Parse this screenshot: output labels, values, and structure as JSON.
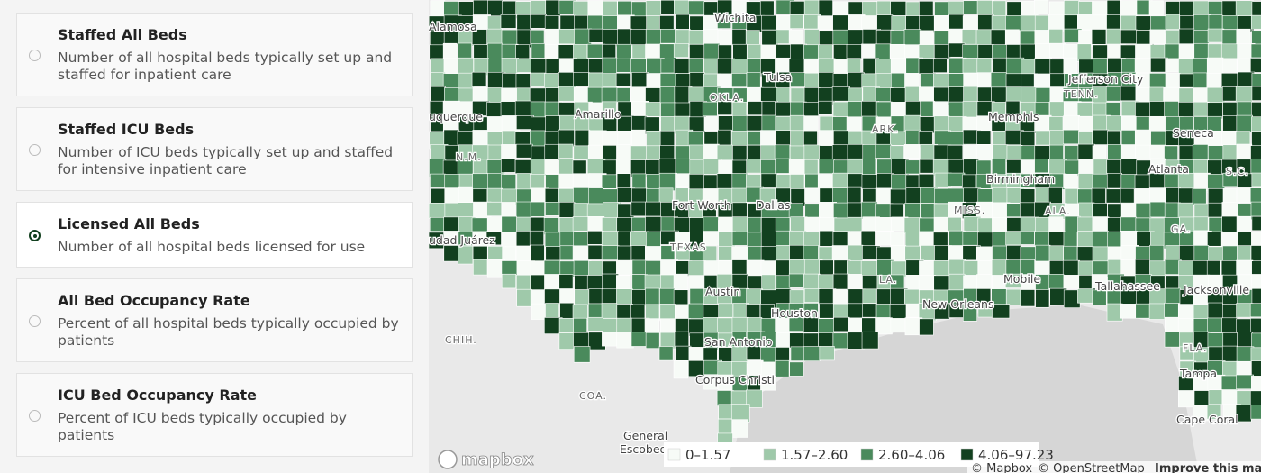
{
  "options": [
    {
      "title": "Staffed All Beds",
      "description": "Number of all hospital beds typically set up and staffed for inpatient care",
      "selected": false
    },
    {
      "title": "Staffed ICU Beds",
      "description": "Number of ICU beds typically set up and staffed for intensive inpatient care",
      "selected": false
    },
    {
      "title": "Licensed All Beds",
      "description": "Number of all hospital beds licensed for use",
      "selected": true
    },
    {
      "title": "All Bed Occupancy Rate",
      "description": "Percent of all hospital beds typically occupied by patients",
      "selected": false
    },
    {
      "title": "ICU Bed Occupancy Rate",
      "description": "Percent of ICU beds typically occupied by patients",
      "selected": false
    }
  ],
  "map": {
    "labels": [
      "Alamosa",
      "Wichita",
      "Tulsa",
      "Jefferson City",
      "OKLA.",
      "TENN.",
      "Amarillo",
      "Memphis",
      "uquerque",
      "N.M.",
      "ARK.",
      "Seneca",
      "Atlanta",
      "S.C.",
      "Birmingham",
      "Fort Worth",
      "Dallas",
      "MISS.",
      "ALA.",
      "udad Juárez",
      "TEXAS",
      "GA.",
      "LA.",
      "Mobile",
      "Tallahassee",
      "Jacksonville",
      "Austin",
      "New Orleans",
      "Houston",
      "CHIH.",
      "San Antonio",
      "FLA.",
      "Tampa",
      "Corpus Christi",
      "COA.",
      "General",
      "Escobed",
      "Cape Coral"
    ],
    "legend": [
      {
        "label": "0–1.57",
        "color": "#f7fbf7"
      },
      {
        "label": "1.57–2.60",
        "color": "#9fc9aa"
      },
      {
        "label": "2.60–4.06",
        "color": "#4a8a5c"
      },
      {
        "label": "4.06–97.23",
        "color": "#12401f"
      }
    ],
    "logo": "mapbox",
    "attribution": [
      "© Mapbox",
      "© OpenStreetMap",
      "Improve this ma"
    ]
  }
}
